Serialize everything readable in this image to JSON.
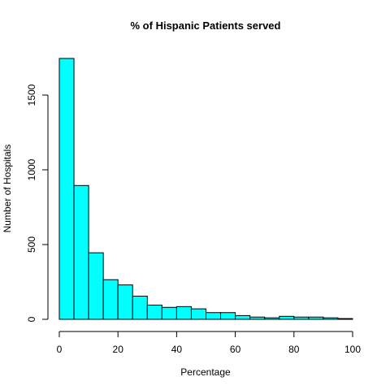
{
  "chart_data": {
    "type": "bar",
    "title": "% of Hispanic Patients served",
    "xlabel": "Percentage",
    "ylabel": "Number of Hospitals",
    "bin_edges": [
      0,
      5,
      10,
      15,
      20,
      25,
      30,
      35,
      40,
      45,
      50,
      55,
      60,
      65,
      70,
      75,
      80,
      85,
      90,
      95,
      100
    ],
    "values": [
      1745,
      895,
      445,
      265,
      230,
      155,
      95,
      80,
      85,
      70,
      45,
      45,
      25,
      15,
      10,
      20,
      15,
      15,
      10,
      5
    ],
    "xlim": [
      0,
      100
    ],
    "ylim": [
      0,
      1750
    ],
    "x_ticks": [
      0,
      20,
      40,
      60,
      80,
      100
    ],
    "y_ticks": [
      0,
      500,
      1000,
      1500
    ],
    "grid": false,
    "colors": {
      "bar_fill": "#00FFFF",
      "bar_stroke": "#000000"
    }
  }
}
